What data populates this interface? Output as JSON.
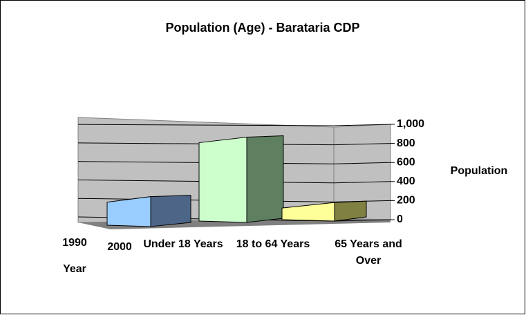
{
  "chart_data": {
    "type": "bar3d",
    "title": "Population (Age) - Barataria CDP",
    "categories": [
      "Under 18 Years",
      "18 to 64 Years",
      "65 Years and Over"
    ],
    "series": [
      {
        "name": "1990",
        "values": [
          null,
          null,
          null
        ]
      },
      {
        "name": "2000",
        "values": [
          300,
          880,
          180
        ]
      }
    ],
    "colors": [
      [
        "#99ccff",
        "#4d6688"
      ],
      [
        "#ccffcc",
        "#5f8060"
      ],
      [
        "#ffff99",
        "#808040"
      ]
    ],
    "x_label": "Year",
    "y_label": "Population",
    "ylim": [
      0,
      1000
    ],
    "yticks": [
      0,
      200,
      400,
      600,
      800,
      {
        "value": 1000,
        "label": "1,000"
      }
    ],
    "grid": true
  }
}
